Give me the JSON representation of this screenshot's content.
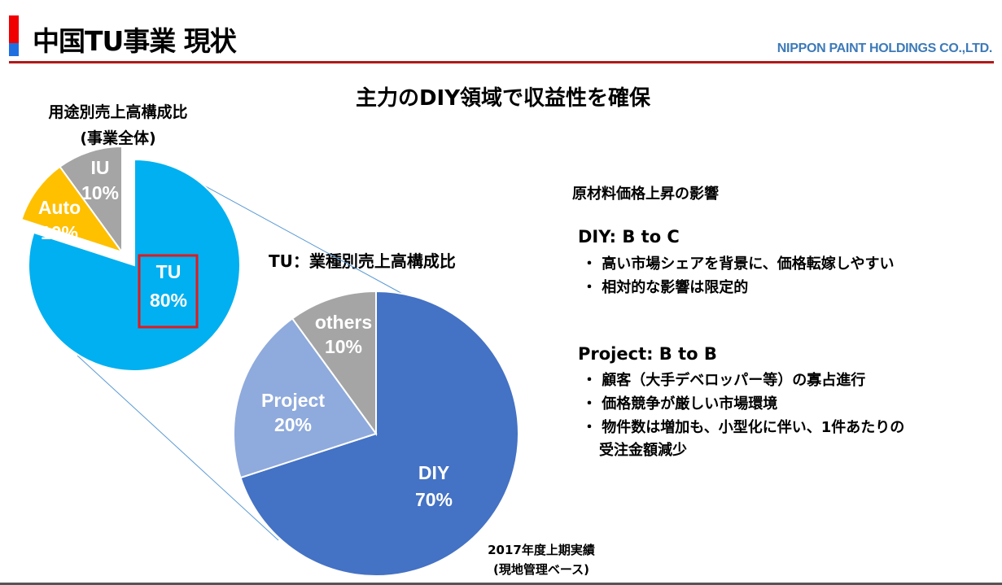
{
  "header": {
    "title": "中国TU事業 現状",
    "company": "NIPPON PAINT HOLDINGS CO.,LTD.",
    "subtitle": "主力のDIY領域で収益性を確保"
  },
  "colors": {
    "accent_red": "#b11a1a",
    "brand_blue": "#3d7ab8"
  },
  "chart_data": [
    {
      "type": "pie",
      "title": "用途別売上高構成比",
      "subtitle": "(事業全体)",
      "slices": [
        {
          "label": "TU",
          "value": 80,
          "value_label": "80%",
          "color": "#00b0f0",
          "highlighted": true
        },
        {
          "label": "Auto",
          "value": 10,
          "value_label": "10%",
          "color": "#ffc000",
          "exploded": true
        },
        {
          "label": "IU",
          "value": 10,
          "value_label": "10%",
          "color": "#a5a5a5",
          "exploded": true
        }
      ]
    },
    {
      "type": "pie",
      "title": "TU：業種別売上高構成比",
      "slices": [
        {
          "label": "DIY",
          "value": 70,
          "value_label": "70%",
          "color": "#4472c4"
        },
        {
          "label": "Project",
          "value": 20,
          "value_label": "20%",
          "color": "#8faadc"
        },
        {
          "label": "others",
          "value": 10,
          "value_label": "10%",
          "color": "#a5a5a5"
        }
      ],
      "note": [
        "2017年度上期実績",
        "(現地管理ベース)"
      ]
    }
  ],
  "right_panel": {
    "heading": "原材料価格上昇の影響",
    "sections": [
      {
        "title": "DIY: B to C",
        "bullets": [
          "・ 高い市場シェアを背景に、価格転嫁しやすい",
          "・ 相対的な影響は限定的"
        ]
      },
      {
        "title": "Project: B to B",
        "bullets": [
          "・ 顧客（大手デベロッパー等）の寡占進行",
          "・ 価格競争が厳しい市場環境",
          "・ 物件数は増加も、小型化に伴い、1件あたりの",
          "受注金額減少"
        ]
      }
    ]
  }
}
